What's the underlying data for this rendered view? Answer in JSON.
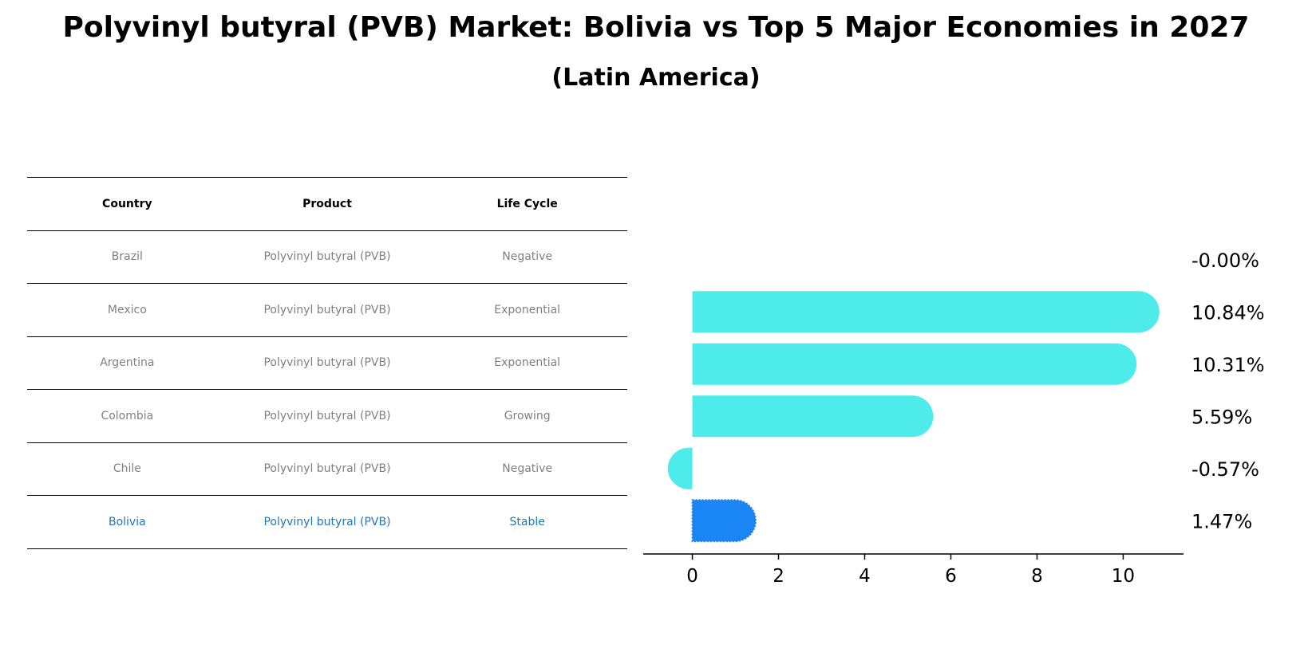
{
  "title": "Polyvinyl butyral (PVB) Market: Bolivia vs Top 5 Major Economies in 2027",
  "subtitle": "(Latin America)",
  "table": {
    "headers": [
      "Country",
      "Product",
      "Life Cycle"
    ],
    "rows": [
      [
        "Brazil",
        "Polyvinyl butyral (PVB)",
        "Negative"
      ],
      [
        "Mexico",
        "Polyvinyl butyral (PVB)",
        "Exponential"
      ],
      [
        "Argentina",
        "Polyvinyl butyral (PVB)",
        "Exponential"
      ],
      [
        "Colombia",
        "Polyvinyl butyral (PVB)",
        "Growing"
      ],
      [
        "Chile",
        "Polyvinyl butyral (PVB)",
        "Negative"
      ],
      [
        "Bolivia",
        "Polyvinyl butyral (PVB)",
        "Stable"
      ]
    ],
    "highlight_row": "Bolivia"
  },
  "colors": {
    "bar": "#4deceb",
    "highlight_bar": "#1a85f5",
    "highlight_text": "#1f77b4",
    "table_text": "#808080"
  },
  "chart_data": {
    "type": "bar",
    "orientation": "horizontal",
    "categories": [
      "Brazil",
      "Mexico",
      "Argentina",
      "Colombia",
      "Chile",
      "Bolivia"
    ],
    "values": [
      -0.0,
      10.84,
      10.31,
      5.59,
      -0.57,
      1.47
    ],
    "value_labels": [
      "-0.00%",
      "10.84%",
      "10.31%",
      "5.59%",
      "-0.57%",
      "1.47%"
    ],
    "highlight": "Bolivia",
    "xlim": [
      -1.14,
      11.4
    ],
    "xticks": [
      0,
      2,
      4,
      6,
      8,
      10
    ],
    "grid": false
  }
}
